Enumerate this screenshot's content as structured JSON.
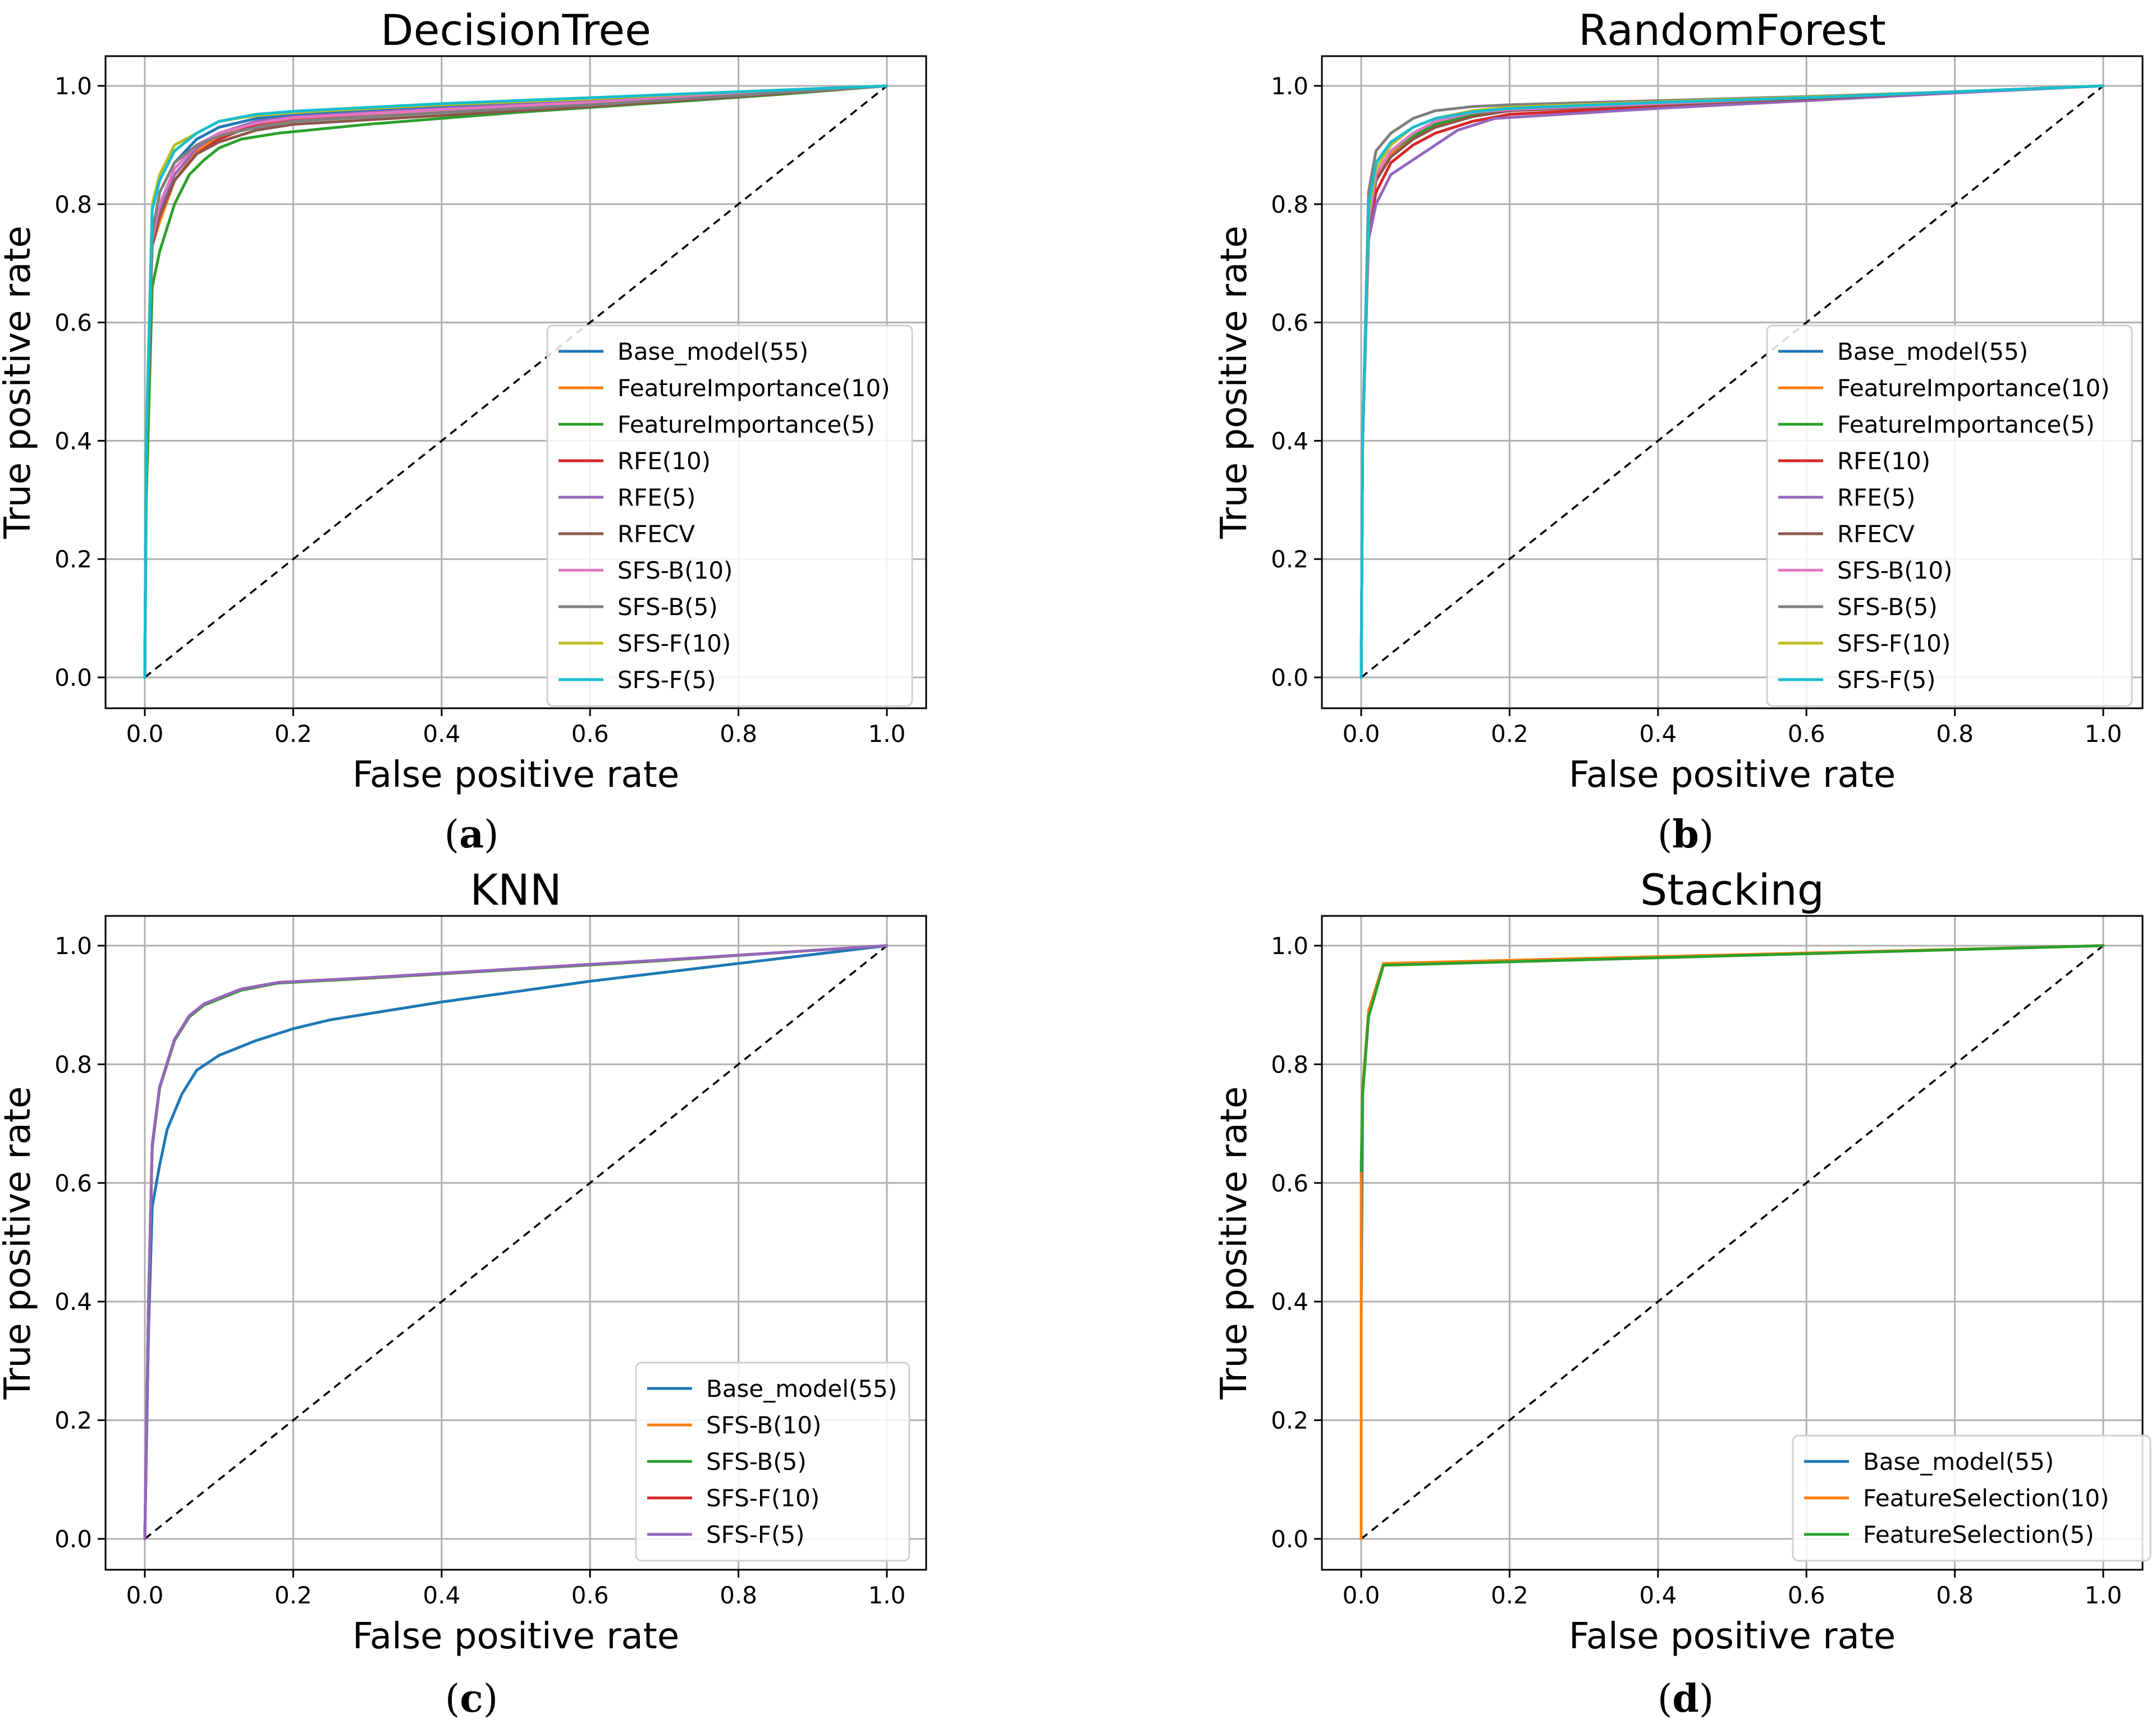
{
  "chart_data": [
    {
      "id": "a",
      "type": "line",
      "title": "DecisionTree",
      "xlabel": "False positive rate",
      "ylabel": "True positive rate",
      "xlim": [
        0,
        1
      ],
      "ylim": [
        0,
        1
      ],
      "xticks": [
        "0.0",
        "0.2",
        "0.4",
        "0.6",
        "0.8",
        "1.0"
      ],
      "yticks": [
        "0.0",
        "0.2",
        "0.4",
        "0.6",
        "0.8",
        "1.0"
      ],
      "grid": true,
      "legend_position": "lower-right",
      "caption": {
        "open": "(",
        "label": "a",
        "close": ")"
      },
      "diagonal": [
        [
          0,
          0
        ],
        [
          1,
          1
        ]
      ],
      "series": [
        {
          "name": "Base_model(55)",
          "color": "#1f77b4",
          "x": [
            0,
            0.002,
            0.01,
            0.02,
            0.04,
            0.07,
            0.1,
            0.15,
            0.2,
            0.4,
            0.6,
            0.8,
            1.0
          ],
          "y": [
            0,
            0.4,
            0.75,
            0.82,
            0.87,
            0.91,
            0.93,
            0.945,
            0.95,
            0.965,
            0.975,
            0.988,
            1.0
          ]
        },
        {
          "name": "FeatureImportance(10)",
          "color": "#ff7f0e",
          "x": [
            0,
            0.002,
            0.01,
            0.02,
            0.04,
            0.07,
            0.1,
            0.15,
            0.2,
            0.4,
            0.6,
            0.8,
            1.0
          ],
          "y": [
            0,
            0.4,
            0.73,
            0.77,
            0.84,
            0.89,
            0.915,
            0.935,
            0.945,
            0.96,
            0.972,
            0.986,
            1.0
          ]
        },
        {
          "name": "FeatureImportance(5)",
          "color": "#2ca02c",
          "x": [
            0,
            0.002,
            0.01,
            0.02,
            0.04,
            0.06,
            0.08,
            0.1,
            0.13,
            0.18,
            0.3,
            0.5,
            0.7,
            0.85,
            1.0
          ],
          "y": [
            0,
            0.3,
            0.66,
            0.72,
            0.8,
            0.85,
            0.875,
            0.895,
            0.91,
            0.92,
            0.935,
            0.955,
            0.972,
            0.985,
            1.0
          ]
        },
        {
          "name": "RFE(10)",
          "color": "#d62728",
          "x": [
            0,
            0.002,
            0.01,
            0.02,
            0.04,
            0.07,
            0.1,
            0.15,
            0.2,
            0.4,
            0.6,
            0.8,
            1.0
          ],
          "y": [
            0,
            0.4,
            0.74,
            0.78,
            0.84,
            0.885,
            0.91,
            0.935,
            0.945,
            0.96,
            0.972,
            0.986,
            1.0
          ]
        },
        {
          "name": "RFE(5)",
          "color": "#9467bd",
          "x": [
            0,
            0.002,
            0.01,
            0.02,
            0.04,
            0.07,
            0.1,
            0.15,
            0.2,
            0.4,
            0.6,
            0.8,
            1.0
          ],
          "y": [
            0,
            0.4,
            0.74,
            0.79,
            0.85,
            0.895,
            0.92,
            0.94,
            0.948,
            0.962,
            0.974,
            0.987,
            1.0
          ]
        },
        {
          "name": "RFECV",
          "color": "#8c564b",
          "x": [
            0,
            0.002,
            0.01,
            0.02,
            0.04,
            0.07,
            0.1,
            0.15,
            0.2,
            0.4,
            0.6,
            0.8,
            1.0
          ],
          "y": [
            0,
            0.4,
            0.73,
            0.78,
            0.84,
            0.885,
            0.905,
            0.925,
            0.935,
            0.95,
            0.965,
            0.982,
            1.0
          ]
        },
        {
          "name": "SFS-B(10)",
          "color": "#e377c2",
          "x": [
            0,
            0.002,
            0.01,
            0.02,
            0.04,
            0.07,
            0.1,
            0.15,
            0.2,
            0.4,
            0.6,
            0.8,
            1.0
          ],
          "y": [
            0,
            0.4,
            0.74,
            0.8,
            0.86,
            0.9,
            0.92,
            0.937,
            0.946,
            0.96,
            0.972,
            0.986,
            1.0
          ]
        },
        {
          "name": "SFS-B(5)",
          "color": "#7f7f7f",
          "x": [
            0,
            0.002,
            0.01,
            0.02,
            0.04,
            0.07,
            0.1,
            0.15,
            0.2,
            0.4,
            0.6,
            0.8,
            1.0
          ],
          "y": [
            0,
            0.4,
            0.75,
            0.82,
            0.87,
            0.9,
            0.915,
            0.93,
            0.94,
            0.955,
            0.968,
            0.984,
            1.0
          ]
        },
        {
          "name": "SFS-F(10)",
          "color": "#bcbd22",
          "x": [
            0,
            0.002,
            0.01,
            0.02,
            0.04,
            0.07,
            0.1,
            0.15,
            0.2,
            0.4,
            0.6,
            0.8,
            1.0
          ],
          "y": [
            0,
            0.4,
            0.8,
            0.85,
            0.9,
            0.92,
            0.94,
            0.95,
            0.955,
            0.968,
            0.978,
            0.99,
            1.0
          ]
        },
        {
          "name": "SFS-F(5)",
          "color": "#17becf",
          "x": [
            0,
            0.002,
            0.01,
            0.02,
            0.04,
            0.07,
            0.1,
            0.15,
            0.2,
            0.4,
            0.6,
            0.8,
            1.0
          ],
          "y": [
            0,
            0.4,
            0.79,
            0.84,
            0.89,
            0.92,
            0.94,
            0.952,
            0.957,
            0.97,
            0.98,
            0.99,
            1.0
          ]
        }
      ]
    },
    {
      "id": "b",
      "type": "line",
      "title": "RandomForest",
      "xlabel": "False positive rate",
      "ylabel": "True positive rate",
      "xlim": [
        0,
        1
      ],
      "ylim": [
        0,
        1
      ],
      "xticks": [
        "0.0",
        "0.2",
        "0.4",
        "0.6",
        "0.8",
        "1.0"
      ],
      "yticks": [
        "0.0",
        "0.2",
        "0.4",
        "0.6",
        "0.8",
        "1.0"
      ],
      "grid": true,
      "legend_position": "lower-right",
      "caption": {
        "open": "(",
        "label": "b",
        "close": ")"
      },
      "diagonal": [
        [
          0,
          0
        ],
        [
          1,
          1
        ]
      ],
      "series": [
        {
          "name": "Base_model(55)",
          "color": "#1f77b4",
          "x": [
            0,
            0.002,
            0.01,
            0.02,
            0.04,
            0.07,
            0.1,
            0.15,
            0.2,
            0.4,
            0.6,
            0.8,
            1.0
          ],
          "y": [
            0,
            0.4,
            0.78,
            0.85,
            0.89,
            0.92,
            0.94,
            0.955,
            0.962,
            0.972,
            0.98,
            0.99,
            1.0
          ]
        },
        {
          "name": "FeatureImportance(10)",
          "color": "#ff7f0e",
          "x": [
            0,
            0.002,
            0.01,
            0.02,
            0.04,
            0.07,
            0.1,
            0.15,
            0.2,
            0.4,
            0.6,
            0.8,
            1.0
          ],
          "y": [
            0,
            0.4,
            0.77,
            0.84,
            0.885,
            0.915,
            0.935,
            0.95,
            0.96,
            0.97,
            0.98,
            0.99,
            1.0
          ]
        },
        {
          "name": "FeatureImportance(5)",
          "color": "#2ca02c",
          "x": [
            0,
            0.002,
            0.01,
            0.02,
            0.04,
            0.07,
            0.1,
            0.15,
            0.2,
            0.4,
            0.6,
            0.8,
            1.0
          ],
          "y": [
            0,
            0.4,
            0.78,
            0.85,
            0.89,
            0.915,
            0.935,
            0.95,
            0.958,
            0.97,
            0.98,
            0.99,
            1.0
          ]
        },
        {
          "name": "RFE(10)",
          "color": "#d62728",
          "x": [
            0,
            0.002,
            0.01,
            0.02,
            0.04,
            0.07,
            0.1,
            0.15,
            0.2,
            0.4,
            0.6,
            0.8,
            1.0
          ],
          "y": [
            0,
            0.4,
            0.75,
            0.82,
            0.87,
            0.9,
            0.92,
            0.94,
            0.952,
            0.965,
            0.978,
            0.99,
            1.0
          ]
        },
        {
          "name": "RFE(5)",
          "color": "#9467bd",
          "x": [
            0,
            0.002,
            0.01,
            0.02,
            0.04,
            0.07,
            0.1,
            0.13,
            0.18,
            0.4,
            0.6,
            0.8,
            1.0
          ],
          "y": [
            0,
            0.4,
            0.74,
            0.8,
            0.85,
            0.875,
            0.9,
            0.925,
            0.945,
            0.962,
            0.975,
            0.988,
            1.0
          ]
        },
        {
          "name": "RFECV",
          "color": "#8c564b",
          "x": [
            0,
            0.002,
            0.01,
            0.02,
            0.04,
            0.07,
            0.1,
            0.15,
            0.2,
            0.4,
            0.6,
            0.8,
            1.0
          ],
          "y": [
            0,
            0.4,
            0.76,
            0.84,
            0.88,
            0.91,
            0.93,
            0.948,
            0.958,
            0.968,
            0.978,
            0.99,
            1.0
          ]
        },
        {
          "name": "SFS-B(10)",
          "color": "#e377c2",
          "x": [
            0,
            0.002,
            0.01,
            0.02,
            0.04,
            0.07,
            0.1,
            0.15,
            0.2,
            0.4,
            0.6,
            0.8,
            1.0
          ],
          "y": [
            0,
            0.4,
            0.77,
            0.85,
            0.89,
            0.92,
            0.94,
            0.955,
            0.96,
            0.97,
            0.98,
            0.99,
            1.0
          ]
        },
        {
          "name": "SFS-B(5)",
          "color": "#7f7f7f",
          "x": [
            0,
            0.002,
            0.01,
            0.02,
            0.04,
            0.07,
            0.1,
            0.15,
            0.2,
            0.4,
            0.6,
            0.8,
            1.0
          ],
          "y": [
            0,
            0.4,
            0.82,
            0.89,
            0.92,
            0.945,
            0.958,
            0.965,
            0.968,
            0.975,
            0.982,
            0.99,
            1.0
          ]
        },
        {
          "name": "SFS-F(10)",
          "color": "#bcbd22",
          "x": [
            0,
            0.002,
            0.01,
            0.02,
            0.04,
            0.07,
            0.1,
            0.15,
            0.2,
            0.4,
            0.6,
            0.8,
            1.0
          ],
          "y": [
            0,
            0.4,
            0.79,
            0.86,
            0.9,
            0.93,
            0.945,
            0.958,
            0.964,
            0.973,
            0.981,
            0.99,
            1.0
          ]
        },
        {
          "name": "SFS-F(5)",
          "color": "#17becf",
          "x": [
            0,
            0.002,
            0.01,
            0.02,
            0.04,
            0.07,
            0.1,
            0.15,
            0.2,
            0.4,
            0.6,
            0.8,
            1.0
          ],
          "y": [
            0,
            0.4,
            0.8,
            0.87,
            0.905,
            0.93,
            0.945,
            0.956,
            0.962,
            0.972,
            0.98,
            0.99,
            1.0
          ]
        }
      ]
    },
    {
      "id": "c",
      "type": "line",
      "title": "KNN",
      "xlabel": "False positive rate",
      "ylabel": "True positive rate",
      "xlim": [
        0,
        1
      ],
      "ylim": [
        0,
        1
      ],
      "xticks": [
        "0.0",
        "0.2",
        "0.4",
        "0.6",
        "0.8",
        "1.0"
      ],
      "yticks": [
        "0.0",
        "0.2",
        "0.4",
        "0.6",
        "0.8",
        "1.0"
      ],
      "grid": true,
      "legend_position": "lower-right",
      "caption": {
        "open": "(",
        "label": "c",
        "close": ")"
      },
      "diagonal": [
        [
          0,
          0
        ],
        [
          1,
          1
        ]
      ],
      "series": [
        {
          "name": "Base_model(55)",
          "color": "#1f77b4",
          "x": [
            0,
            0.005,
            0.01,
            0.02,
            0.03,
            0.05,
            0.07,
            0.1,
            0.15,
            0.2,
            0.25,
            0.4,
            0.6,
            0.8,
            1.0
          ],
          "y": [
            0,
            0.35,
            0.56,
            0.63,
            0.69,
            0.75,
            0.79,
            0.815,
            0.84,
            0.86,
            0.875,
            0.905,
            0.94,
            0.97,
            1.0
          ]
        },
        {
          "name": "SFS-B(10)",
          "color": "#ff7f0e",
          "x": [
            0,
            0.005,
            0.01,
            0.02,
            0.04,
            0.06,
            0.08,
            0.1,
            0.13,
            0.18,
            0.3,
            0.5,
            0.7,
            0.85,
            1.0
          ],
          "y": [
            0,
            0.4,
            0.66,
            0.76,
            0.84,
            0.88,
            0.9,
            0.91,
            0.925,
            0.937,
            0.945,
            0.96,
            0.975,
            0.988,
            1.0
          ]
        },
        {
          "name": "SFS-B(5)",
          "color": "#2ca02c",
          "x": [
            0,
            0.005,
            0.01,
            0.02,
            0.04,
            0.06,
            0.08,
            0.1,
            0.13,
            0.18,
            0.3,
            0.5,
            0.7,
            0.85,
            1.0
          ],
          "y": [
            0,
            0.4,
            0.66,
            0.76,
            0.84,
            0.88,
            0.9,
            0.91,
            0.925,
            0.937,
            0.945,
            0.96,
            0.975,
            0.988,
            1.0
          ]
        },
        {
          "name": "SFS-F(10)",
          "color": "#d62728",
          "x": [
            0,
            0.005,
            0.01,
            0.02,
            0.04,
            0.06,
            0.08,
            0.1,
            0.13,
            0.18,
            0.3,
            0.5,
            0.7,
            0.85,
            1.0
          ],
          "y": [
            0,
            0.4,
            0.665,
            0.762,
            0.842,
            0.882,
            0.902,
            0.912,
            0.927,
            0.938,
            0.946,
            0.961,
            0.976,
            0.988,
            1.0
          ]
        },
        {
          "name": "SFS-F(5)",
          "color": "#9467bd",
          "x": [
            0,
            0.005,
            0.01,
            0.02,
            0.04,
            0.06,
            0.08,
            0.1,
            0.13,
            0.18,
            0.3,
            0.5,
            0.7,
            0.85,
            1.0
          ],
          "y": [
            0,
            0.4,
            0.665,
            0.762,
            0.842,
            0.882,
            0.902,
            0.912,
            0.927,
            0.938,
            0.946,
            0.961,
            0.976,
            0.988,
            1.0
          ]
        }
      ]
    },
    {
      "id": "d",
      "type": "line",
      "title": "Stacking",
      "xlabel": "False positive rate",
      "ylabel": "True positive rate",
      "xlim": [
        0,
        1
      ],
      "ylim": [
        0,
        1
      ],
      "xticks": [
        "0.0",
        "0.2",
        "0.4",
        "0.6",
        "0.8",
        "1.0"
      ],
      "yticks": [
        "0.0",
        "0.2",
        "0.4",
        "0.6",
        "0.8",
        "1.0"
      ],
      "grid": true,
      "legend_position": "lower-right",
      "caption": {
        "open": "(",
        "label": "d",
        "close": ")"
      },
      "diagonal": [
        [
          0,
          0
        ],
        [
          1,
          1
        ]
      ],
      "series": [
        {
          "name": "Base_model(55)",
          "color": "#1f77b4",
          "x": [
            0,
            0,
            0.002,
            0.01,
            0.03,
            1.0
          ],
          "y": [
            0,
            0.37,
            0.75,
            0.89,
            0.968,
            1.0
          ]
        },
        {
          "name": "FeatureSelection(10)",
          "color": "#ff7f0e",
          "x": [
            0,
            0,
            0.002,
            0.01,
            0.03,
            1.0
          ],
          "y": [
            0,
            0.62,
            0.76,
            0.89,
            0.97,
            1.0
          ]
        },
        {
          "name": "FeatureSelection(5)",
          "color": "#2ca02c",
          "x": [
            0,
            0,
            0.002,
            0.01,
            0.03,
            1.0
          ],
          "y": [
            0.62,
            0.62,
            0.75,
            0.88,
            0.967,
            1.0
          ]
        }
      ]
    }
  ]
}
